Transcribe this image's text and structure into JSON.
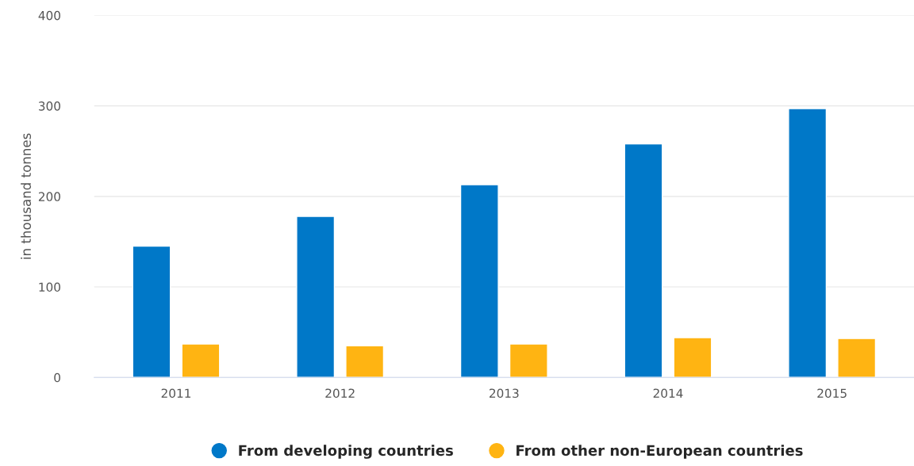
{
  "chart_data": {
    "type": "bar",
    "ylabel": "in thousand tonnes",
    "categories": [
      "2011",
      "2012",
      "2013",
      "2014",
      "2015"
    ],
    "series": [
      {
        "name": "From developing countries",
        "color": "#0078c8",
        "values": [
          145,
          178,
          213,
          258,
          297
        ]
      },
      {
        "name": "From other non-European countries",
        "color": "#ffb412",
        "values": [
          37,
          35,
          37,
          44,
          43
        ]
      }
    ],
    "ylim": [
      0,
      400
    ],
    "yticks": [
      0,
      100,
      200,
      300,
      400
    ],
    "grid": "y",
    "legend": "bottom"
  }
}
